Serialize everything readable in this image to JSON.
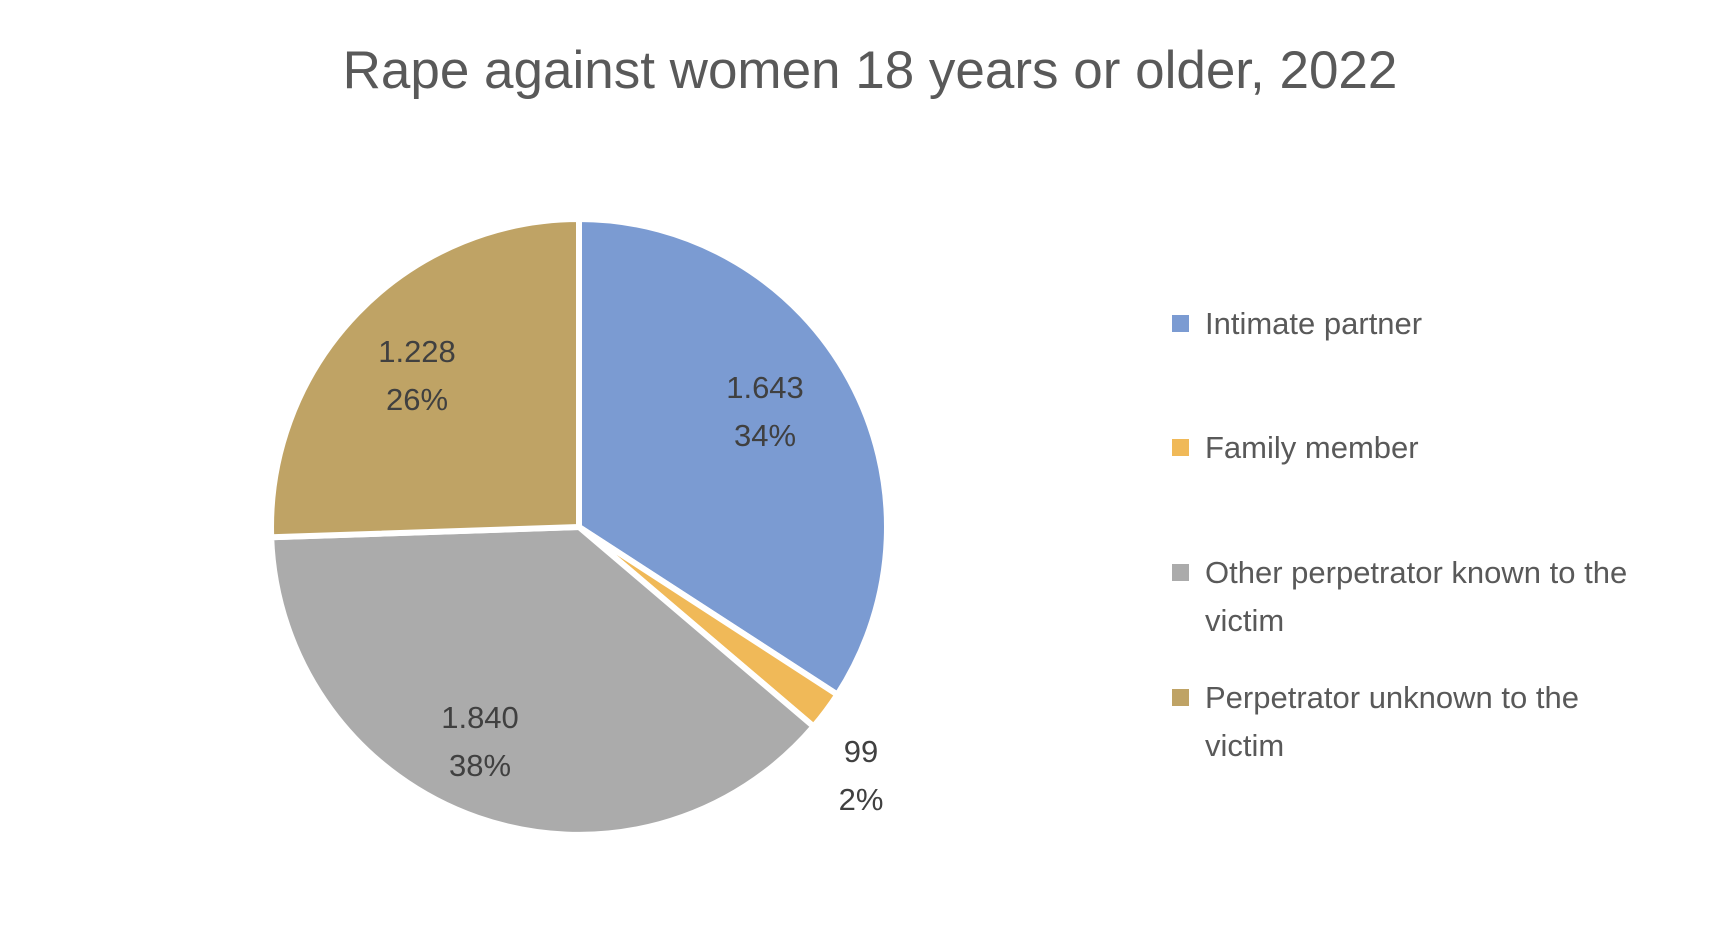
{
  "chart_data": {
    "type": "pie",
    "title": "Rape against women 18 years or older, 2022",
    "direction": "clockwise",
    "start_angle_deg": 0,
    "legend_position": "right",
    "data_label_contents": [
      "value",
      "percentage"
    ],
    "background_color": "#ffffff",
    "slice_border_color": "#ffffff",
    "title_color": "#595959",
    "label_color": "#404040",
    "legend_text_color": "#595959",
    "slices": [
      {
        "id": "intimate-partner",
        "label": "Intimate partner",
        "value": 1643,
        "value_label": "1.643",
        "percent_label": "34%",
        "color": "#7B9BD2",
        "label_placement": "inside"
      },
      {
        "id": "family-member",
        "label": "Family member",
        "value": 99,
        "value_label": "99",
        "percent_label": "2%",
        "color": "#F0B958",
        "label_placement": "outside"
      },
      {
        "id": "other-perpetrator-known-to-the-victim",
        "label": "Other perpetrator known to the victim",
        "value": 1840,
        "value_label": "1.840",
        "percent_label": "38%",
        "color": "#ABABAB",
        "label_placement": "inside"
      },
      {
        "id": "perpetrator-unknown-to-the-victim",
        "label": "Perpetrator unknown to the victim",
        "value": 1228,
        "value_label": "1.228",
        "percent_label": "26%",
        "color": "#BFA365",
        "label_placement": "inside"
      }
    ]
  }
}
